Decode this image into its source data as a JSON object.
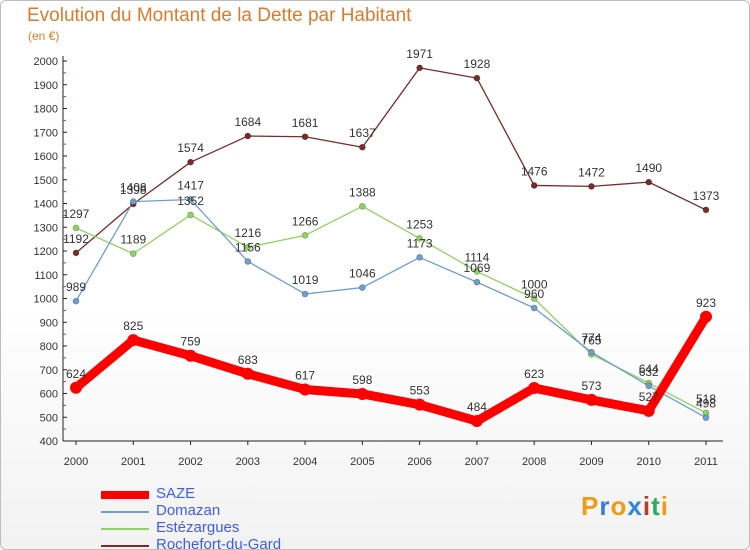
{
  "title": "Evolution du Montant de la Dette par Habitant",
  "subtitle": "(en €)",
  "brand": {
    "text": "Proxiti",
    "letters": [
      "P",
      "r",
      "o",
      "x",
      "i",
      "t",
      "i"
    ],
    "colors": [
      "#f39c12",
      "#3a7bd5",
      "#f39c12",
      "#2e86de",
      "#c0392b",
      "#27ae60",
      "#f39c12"
    ]
  },
  "chart_data": {
    "type": "line",
    "x": [
      "2000",
      "2001",
      "2002",
      "2003",
      "2004",
      "2005",
      "2006",
      "2007",
      "2008",
      "2009",
      "2010",
      "2011"
    ],
    "ylim": [
      400,
      2000
    ],
    "yticks": [
      "400",
      "500",
      "600",
      "700",
      "800",
      "900",
      "1000",
      "1100",
      "1200",
      "1300",
      "1400",
      "1500",
      "1600",
      "1700",
      "1800",
      "1900",
      "2000"
    ],
    "grid": false,
    "legend_position": "bottom-left",
    "series": [
      {
        "name": "SAZE",
        "color": "#ff0000",
        "values": [
          624,
          825,
          759,
          683,
          617,
          598,
          553,
          484,
          623,
          573,
          527,
          923
        ]
      },
      {
        "name": "Domazan",
        "color": "#6d9ecf",
        "values": [
          989,
          1408,
          1417,
          1156,
          1019,
          1046,
          1173,
          1069,
          960,
          774,
          632,
          498
        ]
      },
      {
        "name": "Estézargues",
        "color": "#8fd35f",
        "values": [
          1297,
          1189,
          1352,
          1216,
          1266,
          1388,
          1253,
          1114,
          1000,
          765,
          644,
          518
        ]
      },
      {
        "name": "Rochefort-du-Gard",
        "color": "#7a2a2a",
        "values": [
          1192,
          1398,
          1574,
          1684,
          1681,
          1637,
          1971,
          1928,
          1476,
          1472,
          1490,
          1373
        ]
      }
    ]
  }
}
